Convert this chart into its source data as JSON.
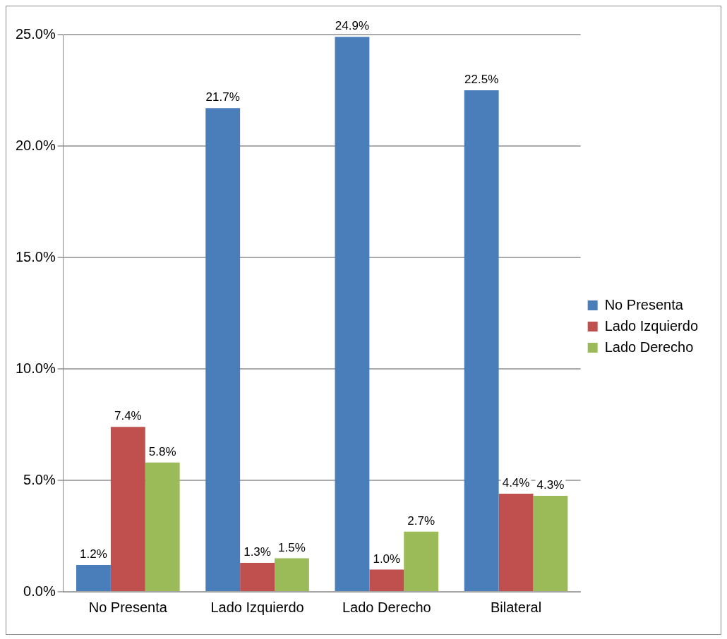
{
  "chart_data": {
    "type": "bar",
    "categories": [
      "No Presenta",
      "Lado Izquierdo",
      "Lado Derecho",
      "Bilateral"
    ],
    "series": [
      {
        "name": "No Presenta",
        "color": "#4a7ebb",
        "values": [
          1.2,
          21.7,
          24.9,
          22.5
        ],
        "value_labels": [
          "1.2%",
          "21.7%",
          "24.9%",
          "22.5%"
        ]
      },
      {
        "name": "Lado Izquierdo",
        "color": "#c0504d",
        "values": [
          7.4,
          1.3,
          1.0,
          4.4
        ],
        "value_labels": [
          "7.4%",
          "1.3%",
          "1.0%",
          "4.4%"
        ]
      },
      {
        "name": "Lado Derecho",
        "color": "#9bbb59",
        "values": [
          5.8,
          1.5,
          2.7,
          4.3
        ],
        "value_labels": [
          "5.8%",
          "1.5%",
          "2.7%",
          "4.3%"
        ]
      }
    ],
    "ylim": [
      0,
      25
    ],
    "yticks": [
      {
        "value": 0,
        "label": "0.0%"
      },
      {
        "value": 5,
        "label": "5.0%"
      },
      {
        "value": 10,
        "label": "10.0%"
      },
      {
        "value": 15,
        "label": "15.0%"
      },
      {
        "value": 20,
        "label": "20.0%"
      },
      {
        "value": 25,
        "label": "25.0%"
      }
    ],
    "grid": "y",
    "legend": "right"
  }
}
